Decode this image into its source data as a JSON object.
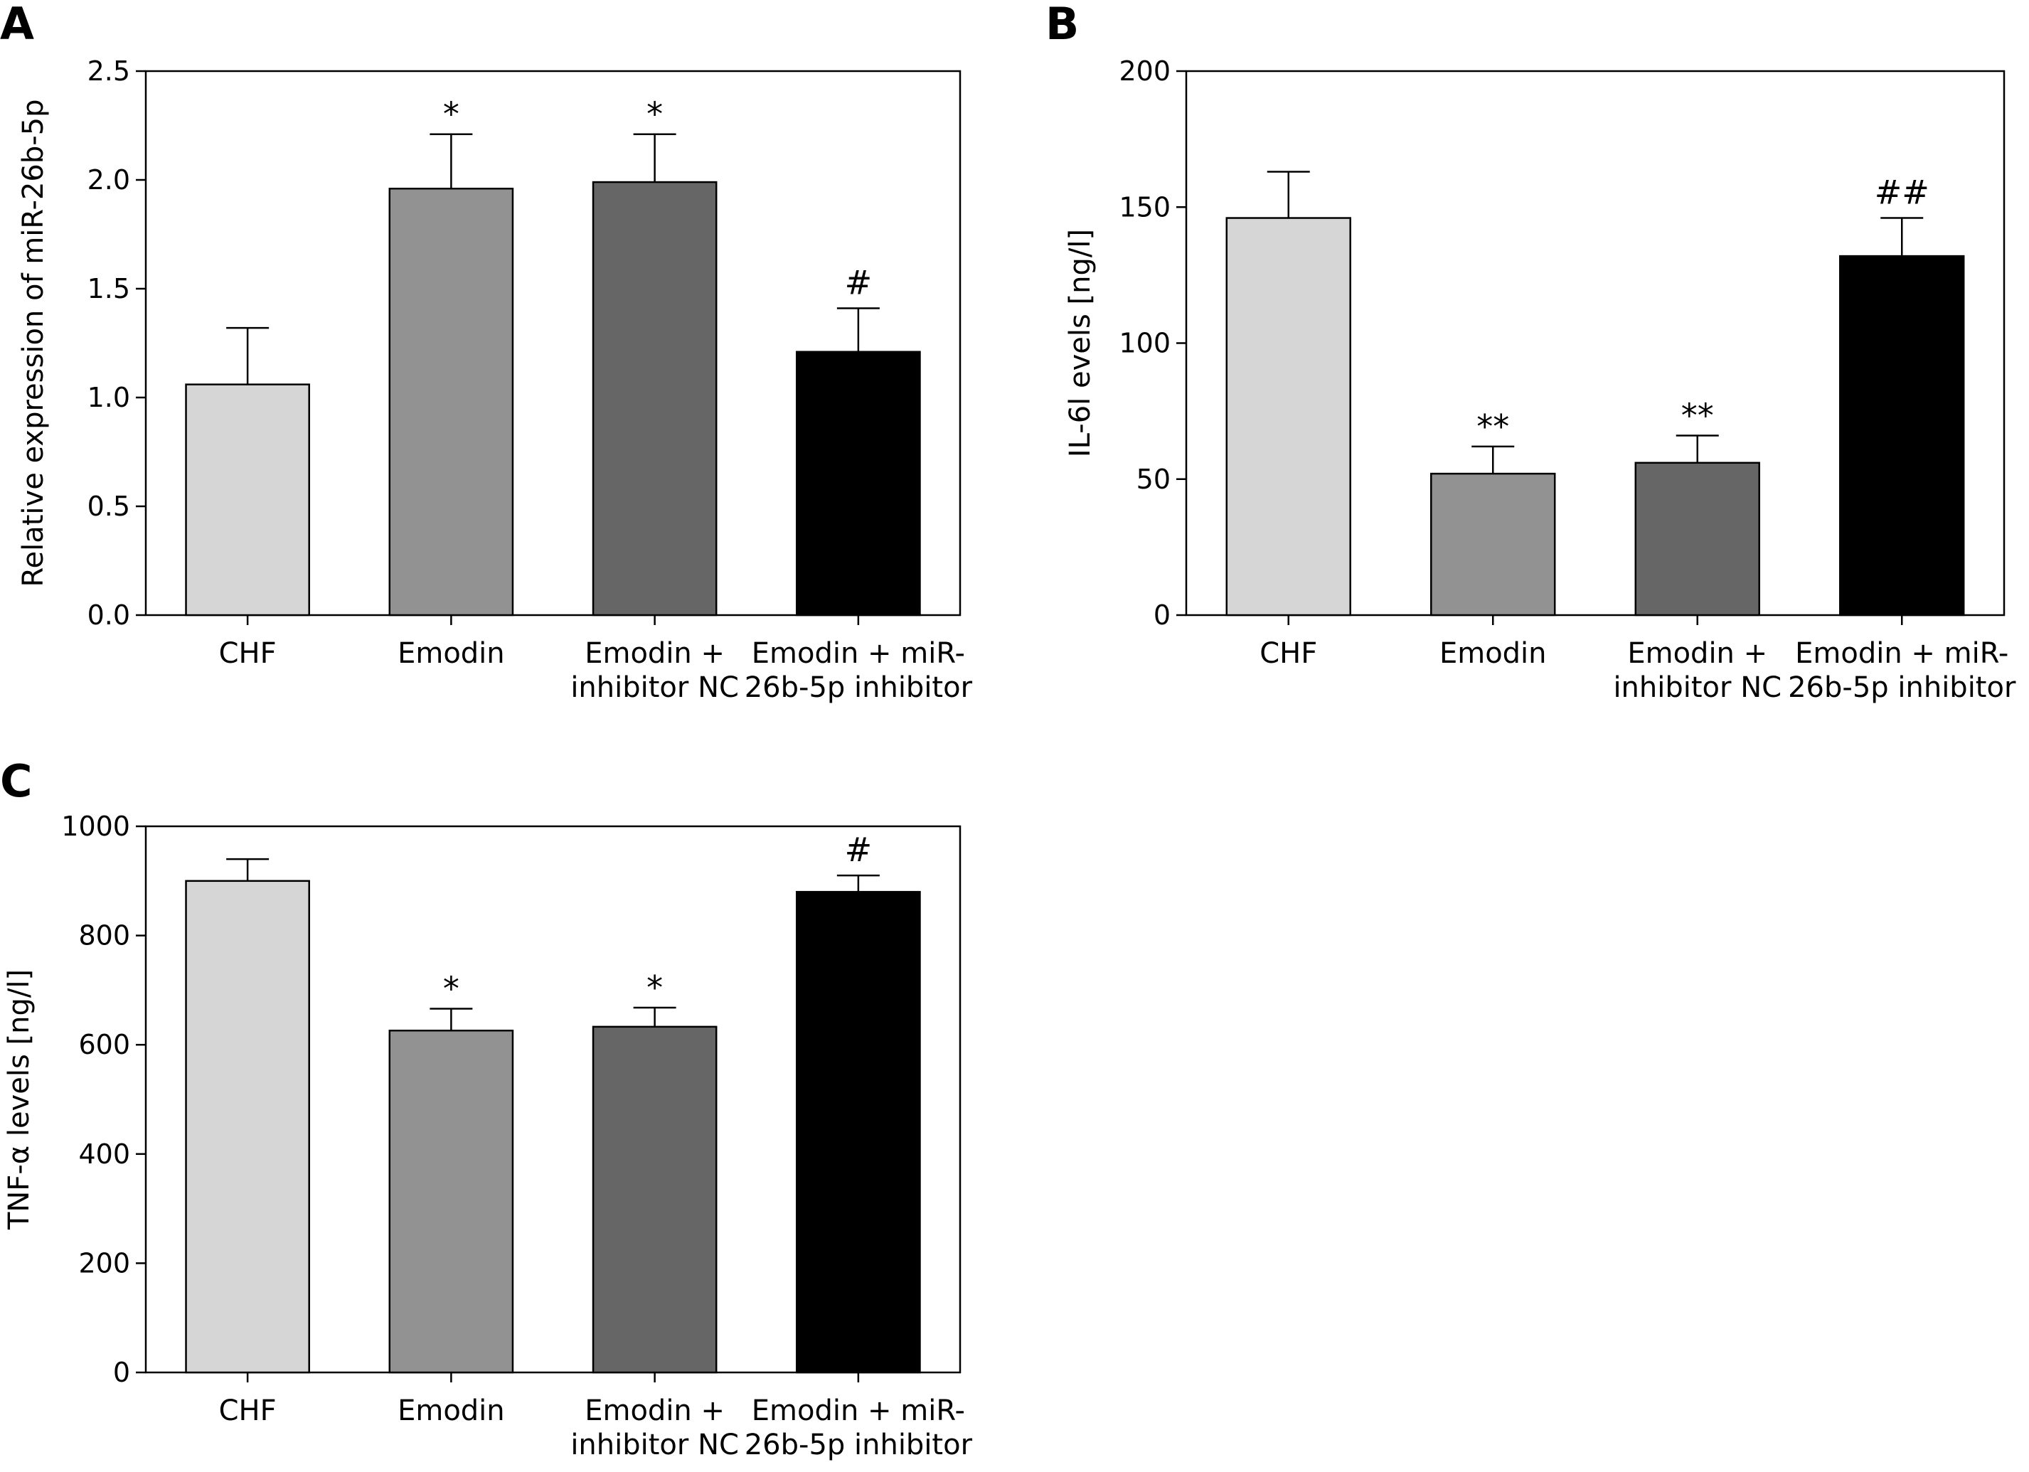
{
  "chart_data": [
    {
      "type": "bar",
      "panel": "A",
      "categories": [
        [
          "CHF"
        ],
        [
          "Emodin"
        ],
        [
          "Emodin +",
          "inhibitor NC"
        ],
        [
          "Emodin + miR-",
          "26b-5p inhibitor"
        ]
      ],
      "values": [
        1.06,
        1.96,
        1.99,
        1.21
      ],
      "errors": [
        0.26,
        0.25,
        0.22,
        0.2
      ],
      "significance": [
        "",
        "*",
        "*",
        "#"
      ],
      "bar_colors": [
        "#d6d6d6",
        "#929292",
        "#666666",
        "#000000"
      ],
      "xlabel": "",
      "ylabel": "Relative expression of miR-26b-5p",
      "ylim": [
        0,
        2.5
      ],
      "yticks": [
        "0.0",
        "0.5",
        "1.0",
        "1.5",
        "2.0",
        "2.5"
      ],
      "grid": false,
      "legend": "none"
    },
    {
      "type": "bar",
      "panel": "B",
      "categories": [
        [
          "CHF"
        ],
        [
          "Emodin"
        ],
        [
          "Emodin +",
          "inhibitor NC"
        ],
        [
          "Emodin + miR-",
          "26b-5p inhibitor"
        ]
      ],
      "values": [
        146,
        52,
        56,
        132
      ],
      "errors": [
        17,
        10,
        10,
        14
      ],
      "significance": [
        "",
        "**",
        "**",
        "##"
      ],
      "bar_colors": [
        "#d6d6d6",
        "#929292",
        "#666666",
        "#000000"
      ],
      "xlabel": "",
      "ylabel": "IL-6l evels [ng/l]",
      "ylim": [
        0,
        200
      ],
      "yticks": [
        "0",
        "50",
        "100",
        "150",
        "200"
      ],
      "grid": false,
      "legend": "none"
    },
    {
      "type": "bar",
      "panel": "C",
      "categories": [
        [
          "CHF"
        ],
        [
          "Emodin"
        ],
        [
          "Emodin +",
          "inhibitor NC"
        ],
        [
          "Emodin + miR-",
          "26b-5p inhibitor"
        ]
      ],
      "values": [
        900,
        626,
        633,
        880
      ],
      "errors": [
        40,
        40,
        35,
        30
      ],
      "significance": [
        "",
        "*",
        "*",
        "#"
      ],
      "bar_colors": [
        "#d6d6d6",
        "#929292",
        "#666666",
        "#000000"
      ],
      "xlabel": "",
      "ylabel": "TNF-α levels [ng/l]",
      "ylim": [
        0,
        1000
      ],
      "yticks": [
        "0",
        "200",
        "400",
        "600",
        "800",
        "1000"
      ],
      "grid": false,
      "legend": "none"
    }
  ]
}
